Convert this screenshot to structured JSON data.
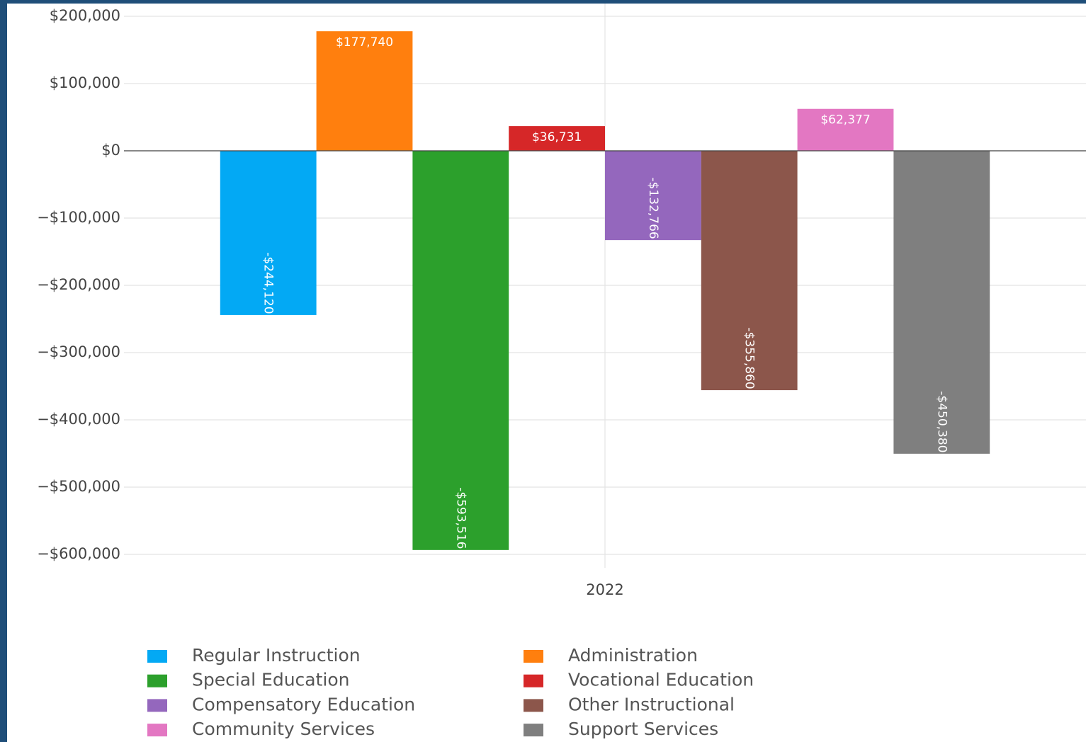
{
  "chart_data": {
    "type": "bar",
    "categories": [
      "2022"
    ],
    "series": [
      {
        "name": "Regular Instruction",
        "color": "#03a9f4",
        "values": [
          -244120
        ],
        "value_labels": [
          "-$244,120"
        ]
      },
      {
        "name": "Administration",
        "color": "#ff7f0e",
        "values": [
          177740
        ],
        "value_labels": [
          "$177,740"
        ]
      },
      {
        "name": "Special Education",
        "color": "#2ca02c",
        "values": [
          -593516
        ],
        "value_labels": [
          "-$593,516"
        ]
      },
      {
        "name": "Vocational Education",
        "color": "#d62728",
        "values": [
          36731
        ],
        "value_labels": [
          "$36,731"
        ]
      },
      {
        "name": "Compensatory Education",
        "color": "#9467bd",
        "values": [
          -132766
        ],
        "value_labels": [
          "-$132,766"
        ]
      },
      {
        "name": "Other Instructional",
        "color": "#8c564b",
        "values": [
          -355860
        ],
        "value_labels": [
          "-$355,860"
        ]
      },
      {
        "name": "Community Services",
        "color": "#e377c2",
        "values": [
          62377
        ],
        "value_labels": [
          "$62,377"
        ]
      },
      {
        "name": "Support Services",
        "color": "#7f7f7f",
        "values": [
          -450380
        ],
        "value_labels": [
          "-$450,380"
        ]
      }
    ],
    "ylim": [
      -620000,
      210000
    ],
    "yticks": [
      {
        "value": 200000,
        "label": "$200,000"
      },
      {
        "value": 100000,
        "label": "$100,000"
      },
      {
        "value": 0,
        "label": "$0"
      },
      {
        "value": -100000,
        "label": "−$100,000"
      },
      {
        "value": -200000,
        "label": "−$200,000"
      },
      {
        "value": -300000,
        "label": "−$300,000"
      },
      {
        "value": -400000,
        "label": "−$400,000"
      },
      {
        "value": -500000,
        "label": "−$500,000"
      },
      {
        "value": -600000,
        "label": "−$600,000"
      }
    ],
    "grid": true,
    "legend": "bottom"
  }
}
